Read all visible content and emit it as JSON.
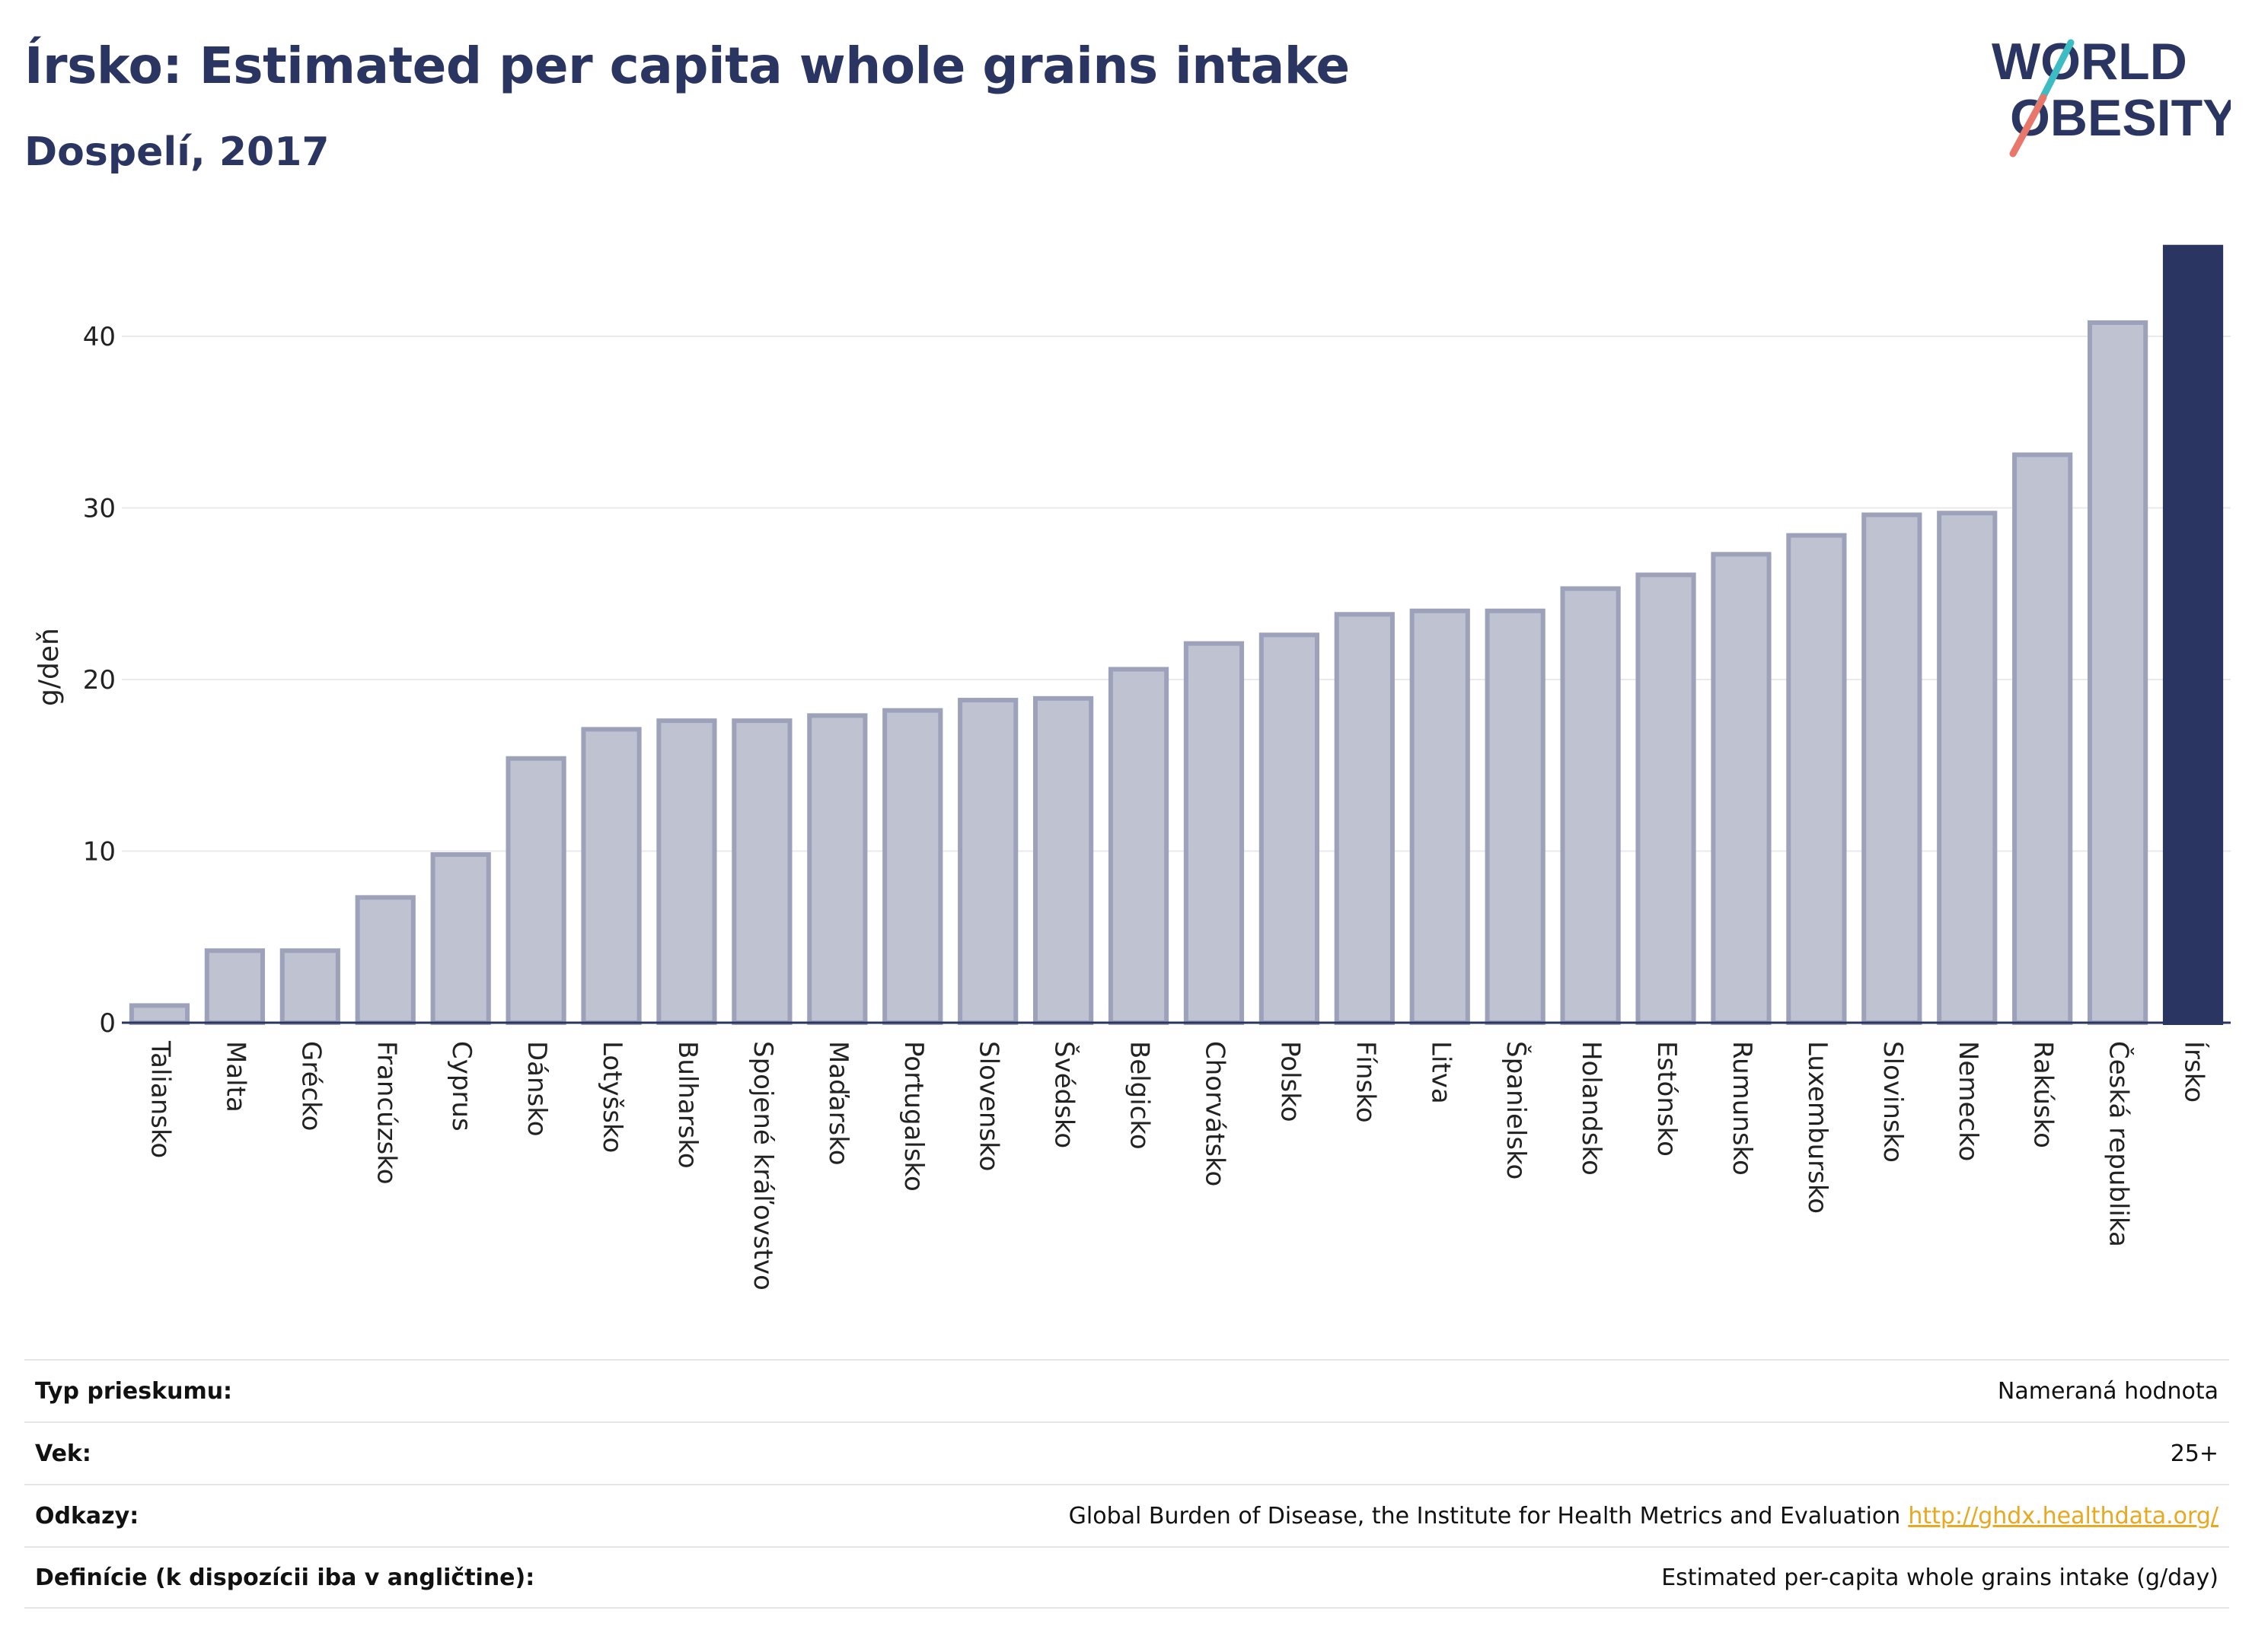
{
  "header": {
    "title": "Írsko: Estimated per capita whole grains intake",
    "subtitle": "Dospelí, 2017"
  },
  "logo": {
    "line1": "WORLD",
    "line2": "OBESITY",
    "accent_colors": [
      "#3dbcc4",
      "#e8766a"
    ]
  },
  "colors": {
    "bar_default": "#bfc2d0",
    "bar_border": "#9da2ba",
    "bar_highlight": "#2b3562",
    "text": "#2b3562"
  },
  "chart_data": {
    "type": "bar",
    "title": "Írsko: Estimated per capita whole grains intake",
    "subtitle": "Dospelí, 2017",
    "ylabel": "g/deň",
    "xlabel": "",
    "ylim": [
      0,
      45
    ],
    "yticks": [
      0,
      10,
      20,
      30,
      40
    ],
    "grid": true,
    "highlight": "Írsko",
    "categories": [
      "Taliansko",
      "Malta",
      "Grécko",
      "Francúzsko",
      "Cyprus",
      "Dánsko",
      "Lotyšsko",
      "Bulharsko",
      "Spojené kráľovstvo",
      "Maďarsko",
      "Portugalsko",
      "Slovensko",
      "Švédsko",
      "Belgicko",
      "Chorvátsko",
      "Polsko",
      "Fínsko",
      "Litva",
      "Španielsko",
      "Holandsko",
      "Estónsko",
      "Rumunsko",
      "Luxembursko",
      "Slovinsko",
      "Nemecko",
      "Rakúsko",
      "Česká republika",
      "Írsko"
    ],
    "values": [
      1.0,
      4.2,
      4.2,
      7.3,
      9.8,
      15.4,
      17.1,
      17.6,
      17.6,
      17.9,
      18.2,
      18.8,
      18.9,
      20.6,
      22.1,
      22.6,
      23.8,
      24.0,
      24.0,
      25.3,
      26.1,
      27.3,
      28.4,
      29.6,
      29.7,
      33.1,
      40.8,
      45.2
    ]
  },
  "info": [
    {
      "key": "Typ prieskumu:",
      "value": "Nameraná hodnota",
      "link": ""
    },
    {
      "key": "Vek:",
      "value": "25+",
      "link": ""
    },
    {
      "key": "Odkazy:",
      "value": "Global Burden of Disease, the Institute for Health Metrics and Evaluation",
      "link": "http://ghdx.healthdata.org/"
    },
    {
      "key": "Definície (k dispozícii iba v angličtine):",
      "value": "Estimated per-capita whole grains intake (g/day)",
      "link": ""
    }
  ]
}
